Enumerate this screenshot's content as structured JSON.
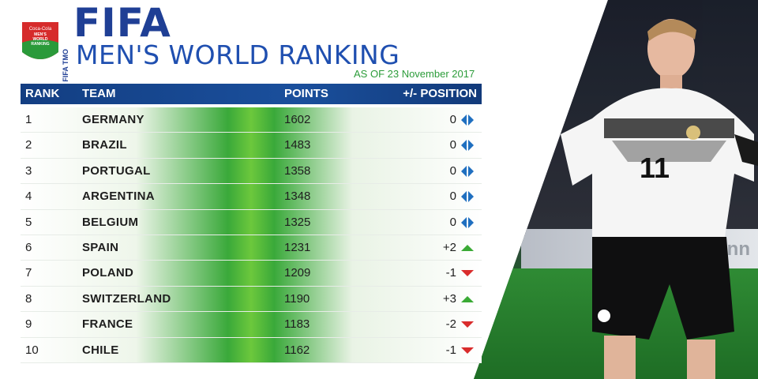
{
  "header": {
    "brand": "FIFA",
    "title": "MEN'S WORLD RANKING",
    "date": "AS OF 23 November 2017",
    "badge_text": "MEN'S WORLD RANKING",
    "tmo": "FIFA TMO"
  },
  "table": {
    "columns": [
      "RANK",
      "TEAM",
      "POINTS",
      "+/- POSITION"
    ],
    "rows": [
      {
        "rank": "1",
        "team": "GERMANY",
        "points": "1602",
        "change": "0",
        "trend": "same"
      },
      {
        "rank": "2",
        "team": "BRAZIL",
        "points": "1483",
        "change": "0",
        "trend": "same"
      },
      {
        "rank": "3",
        "team": "PORTUGAL",
        "points": "1358",
        "change": "0",
        "trend": "same"
      },
      {
        "rank": "4",
        "team": "ARGENTINA",
        "points": "1348",
        "change": "0",
        "trend": "same"
      },
      {
        "rank": "5",
        "team": "BELGIUM",
        "points": "1325",
        "change": "0",
        "trend": "same"
      },
      {
        "rank": "6",
        "team": "SPAIN",
        "points": "1231",
        "change": "+2",
        "trend": "up"
      },
      {
        "rank": "7",
        "team": "POLAND",
        "points": "1209",
        "change": "-1",
        "trend": "down"
      },
      {
        "rank": "8",
        "team": "SWITZERLAND",
        "points": "1190",
        "change": "+3",
        "trend": "up"
      },
      {
        "rank": "9",
        "team": "FRANCE",
        "points": "1183",
        "change": "-2",
        "trend": "down"
      },
      {
        "rank": "10",
        "team": "CHILE",
        "points": "1162",
        "change": "-1",
        "trend": "down"
      }
    ]
  },
  "photo": {
    "jersey_number": "11",
    "board_text": "kann"
  },
  "colors": {
    "brand_blue": "#1f3f95",
    "header_bar": "#1a4f9c",
    "up": "#3aaa35",
    "down": "#d92c2c",
    "same": "#1f6fc0"
  }
}
